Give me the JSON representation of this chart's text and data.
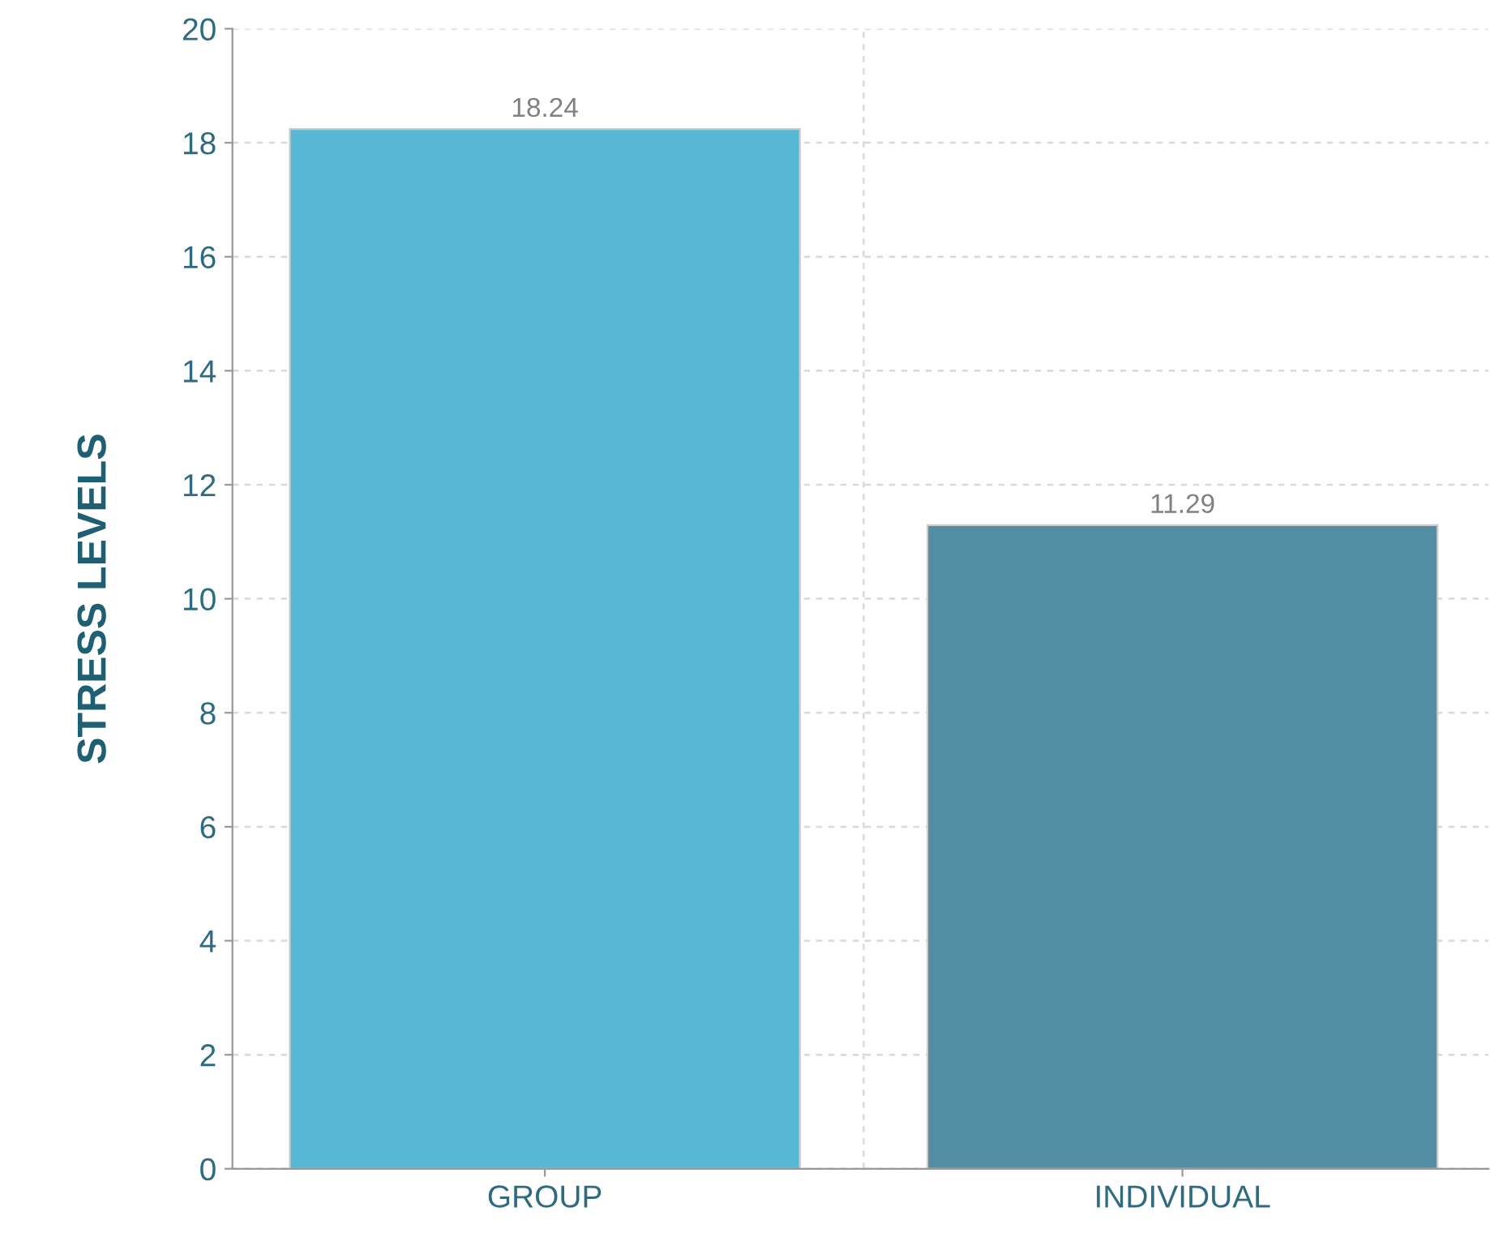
{
  "chart_data": {
    "type": "bar",
    "ylabel": "STRESS LEVELS",
    "categories": [
      "GROUP",
      "INDIVIDUAL"
    ],
    "values": [
      18.24,
      11.29
    ],
    "colors": [
      "#56b8d4",
      "#528ea3"
    ],
    "ylim": [
      0,
      20
    ],
    "yticks": [
      0,
      2,
      4,
      6,
      8,
      10,
      12,
      14,
      16,
      18,
      20
    ],
    "grid": true,
    "data_labels": true
  }
}
